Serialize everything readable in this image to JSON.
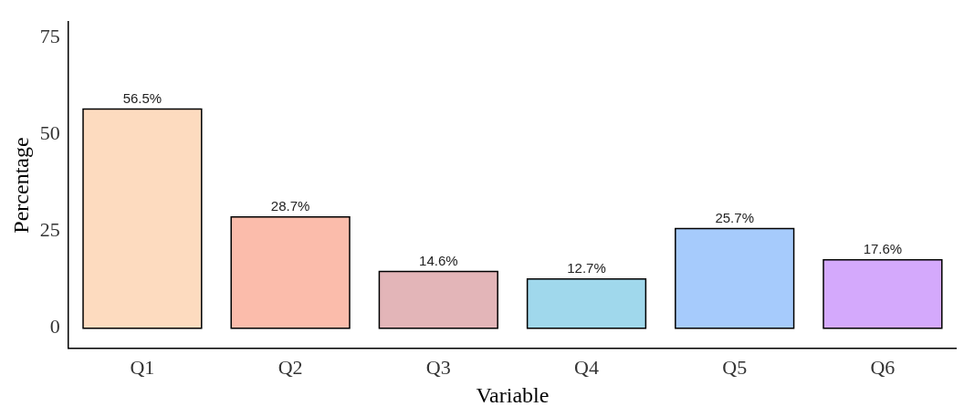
{
  "chart_data": {
    "type": "bar",
    "xlabel": "Variable",
    "ylabel": "Percentage",
    "categories": [
      "Q1",
      "Q2",
      "Q3",
      "Q4",
      "Q5",
      "Q6"
    ],
    "values": [
      56.5,
      28.7,
      14.6,
      12.7,
      25.7,
      17.6
    ],
    "colors": [
      "#fddbbf",
      "#fbbcab",
      "#e3b5b8",
      "#a0d8ec",
      "#a6cbfc",
      "#d4a9fc"
    ],
    "value_labels": [
      "56.5%",
      "28.7%",
      "14.6%",
      "12.7%",
      "25.7%",
      "17.6%"
    ],
    "ylim": [
      -5.2,
      78.9
    ],
    "yticks": [
      0,
      25,
      50,
      75
    ],
    "grid": false,
    "legend": false
  }
}
